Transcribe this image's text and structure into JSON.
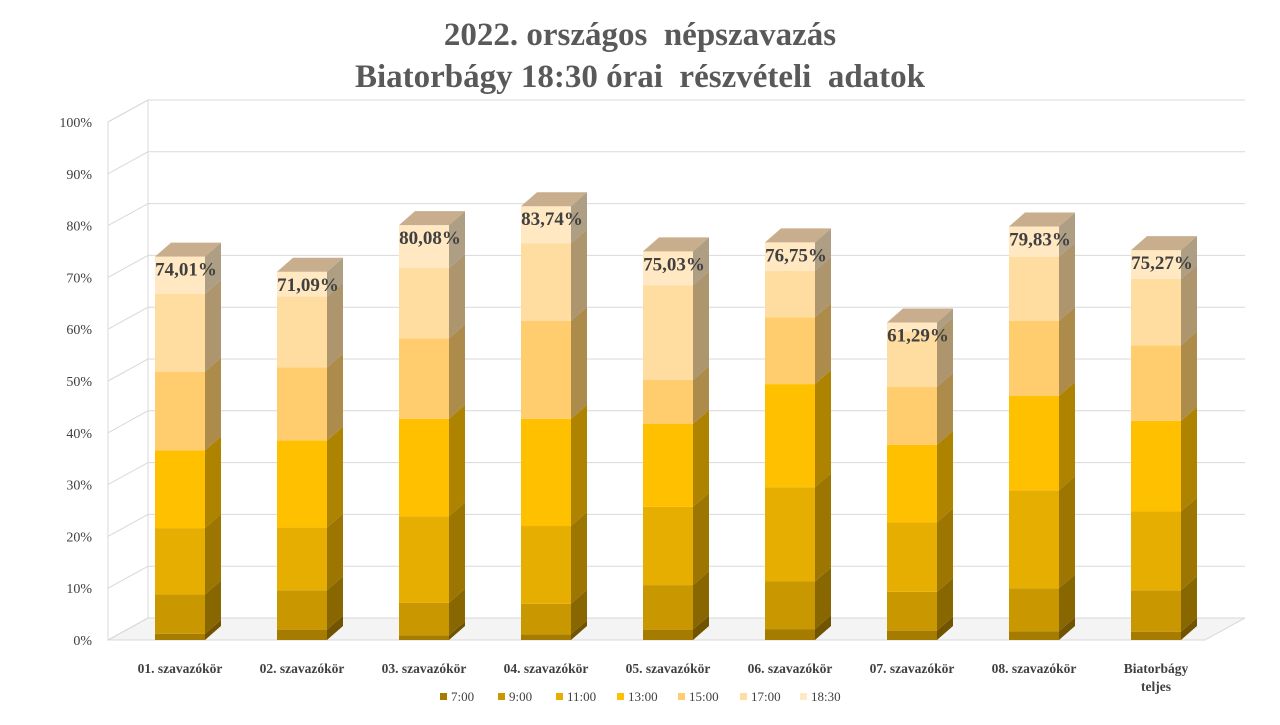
{
  "chart_data": {
    "type": "bar",
    "stacked": true,
    "three_d": true,
    "title": [
      "2022. országos  népszavazás",
      "Biatorbágy 18:30 órai  részvételi  adatok"
    ],
    "xlabel": "",
    "ylabel": "",
    "ylim": [
      0,
      100
    ],
    "yticks": [
      "0%",
      "10%",
      "20%",
      "30%",
      "40%",
      "50%",
      "60%",
      "70%",
      "80%",
      "90%",
      "100%"
    ],
    "grid": true,
    "legend_position": "bottom",
    "categories": [
      [
        "01. szavazókör"
      ],
      [
        "02. szavazókör"
      ],
      [
        "03. szavazókör"
      ],
      [
        "04. szavazókör"
      ],
      [
        "05. szavazókör"
      ],
      [
        "06. szavazókör"
      ],
      [
        "07. szavazókör"
      ],
      [
        "08. szavazókör"
      ],
      [
        "Biatorbágy",
        "teljes"
      ]
    ],
    "series": [
      {
        "name": "7:00",
        "color": "#A67C00",
        "values": [
          1.2,
          2.0,
          0.9,
          1.1,
          2.0,
          2.1,
          1.8,
          1.7,
          1.6
        ]
      },
      {
        "name": "9:00",
        "color": "#C99700",
        "values": [
          7.6,
          7.6,
          6.3,
          5.9,
          8.6,
          9.2,
          7.5,
          8.3,
          8.0
        ]
      },
      {
        "name": "11:00",
        "color": "#E6AE00",
        "values": [
          12.8,
          12.1,
          16.7,
          15.0,
          15.1,
          18.2,
          13.4,
          18.9,
          15.2
        ]
      },
      {
        "name": "13:00",
        "color": "#FFC000",
        "values": [
          15.0,
          16.8,
          18.8,
          20.7,
          16.0,
          19.9,
          15.0,
          18.2,
          17.5
        ]
      },
      {
        "name": "15:00",
        "color": "#FFCD6E",
        "values": [
          15.2,
          14.1,
          15.5,
          18.9,
          8.5,
          12.9,
          11.2,
          14.5,
          14.6
        ]
      },
      {
        "name": "17:00",
        "color": "#FFDCA0",
        "values": [
          15.0,
          13.7,
          13.6,
          15.0,
          18.3,
          9.0,
          10.7,
          12.4,
          12.8
        ]
      },
      {
        "name": "18:30",
        "color": "#FFE8C2",
        "values": [
          7.21,
          4.79,
          8.28,
          7.14,
          6.53,
          5.45,
          1.69,
          5.83,
          5.57
        ]
      }
    ],
    "totals_labels": [
      "74,01%",
      "71,09%",
      "80,08%",
      "83,74%",
      "75,03%",
      "76,75%",
      "61,29%",
      "79,83%",
      "75,27%"
    ]
  }
}
